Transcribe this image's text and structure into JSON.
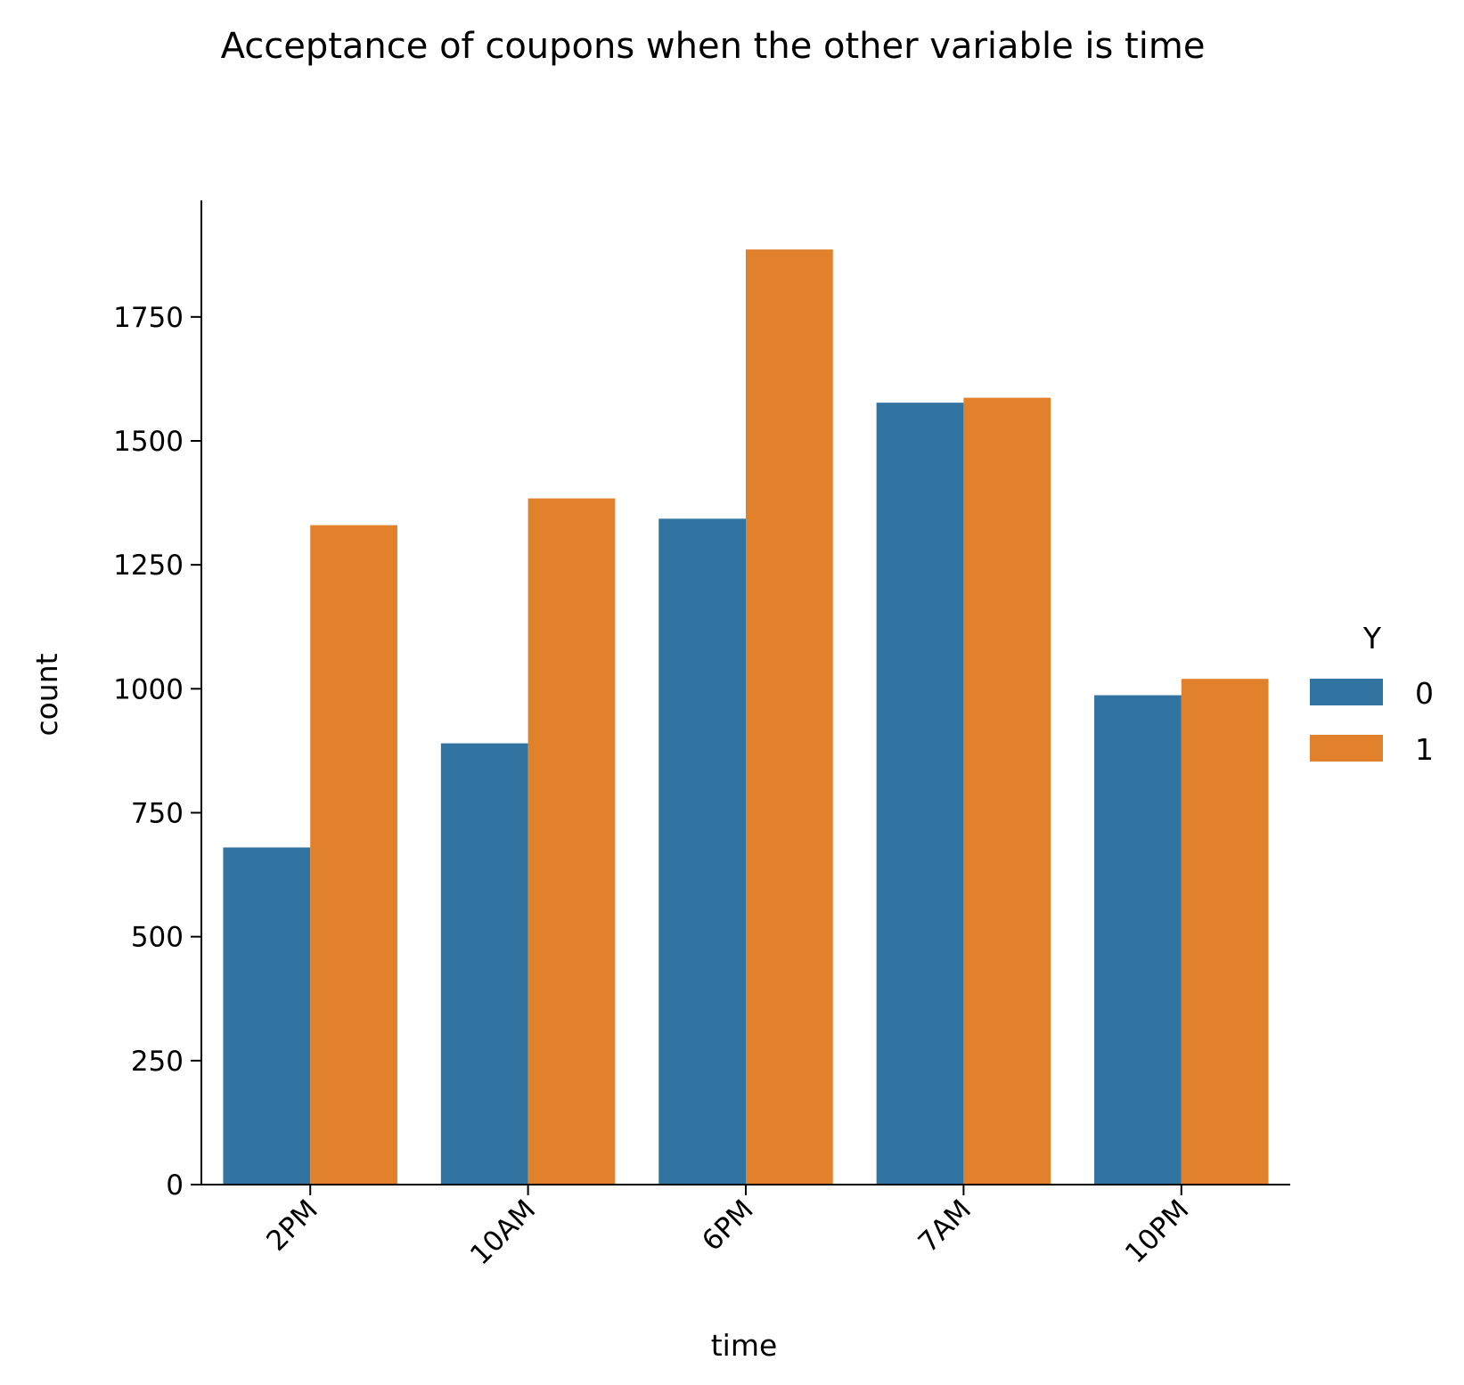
{
  "chart_data": {
    "type": "bar",
    "title": "Acceptance of coupons when the other variable is time",
    "xlabel": "time",
    "ylabel": "count",
    "categories": [
      "2PM",
      "10AM",
      "6PM",
      "7AM",
      "10PM"
    ],
    "series": [
      {
        "name": "0",
        "values": [
          680,
          890,
          1343,
          1577,
          987
        ],
        "color": "#3274a1"
      },
      {
        "name": "1",
        "values": [
          1330,
          1384,
          1886,
          1587,
          1020
        ],
        "color": "#e1812c"
      }
    ],
    "yticks": [
      "0",
      "250",
      "500",
      "750",
      "1000",
      "1250",
      "1500",
      "1750"
    ],
    "ylim": [
      0,
      1985
    ],
    "grid": false,
    "legend": {
      "title": "Y",
      "placement": "right"
    }
  }
}
